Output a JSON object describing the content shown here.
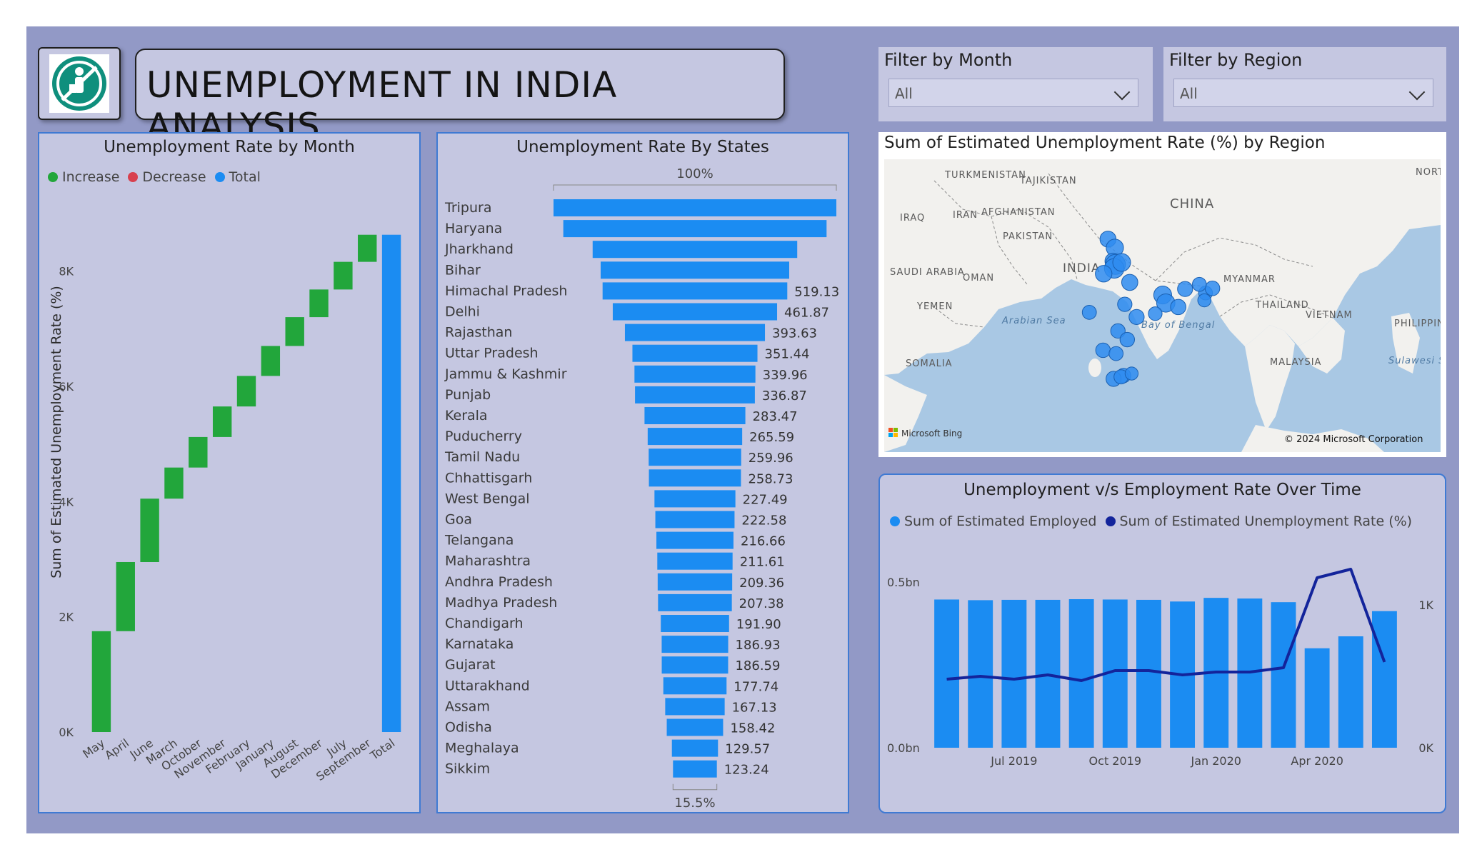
{
  "header": {
    "title": "UNEMPLOYMENT IN INDIA ANALYSIS"
  },
  "filters": [
    {
      "label": "Filter by Month",
      "value": "All"
    },
    {
      "label": "Filter by Region",
      "value": "All"
    }
  ],
  "colors": {
    "increase": "#22a63b",
    "decrease": "#d8404e",
    "total": "#1b8cf2",
    "line": "#13249b"
  },
  "waterfall": {
    "title": "Unemployment Rate by Month",
    "legend": [
      "Increase",
      "Decrease",
      "Total"
    ],
    "ylabel": "Sum of Estimated Unemployment Rate (%)",
    "yticks": [
      "0K",
      "2K",
      "4K",
      "6K",
      "8K"
    ]
  },
  "states": {
    "title": "Unemployment Rate By States",
    "top_label": "100%",
    "bottom_label": "15.5%"
  },
  "map": {
    "title": "Sum of Estimated Unemployment Rate (%) by Region",
    "labels": [
      "TURKMENISTAN",
      "TAJIKISTAN",
      "IRAQ",
      "IRAN",
      "AFGHANISTAN",
      "PAKISTAN",
      "CHINA",
      "SAUDI ARABIA",
      "OMAN",
      "INDIA",
      "MYANMAR",
      "YEMEN",
      "Arabian Sea",
      "Bay of Bengal",
      "THAILAND",
      "VIETNAM",
      "PHILIPPIN",
      "SOMALIA",
      "MALAYSIA",
      "Sulawesi Sea",
      "NORT"
    ],
    "credit_left": "Microsoft Bing",
    "credit_right": "© 2024 Microsoft Corporation"
  },
  "combo": {
    "title": "Unemployment v/s Employment Rate Over Time",
    "legend": [
      "Sum of Estimated Employed",
      "Sum of Estimated Unemployment Rate (%)"
    ],
    "left_ticks": [
      "0.0bn",
      "0.5bn"
    ],
    "right_ticks": [
      "0K",
      "1K"
    ],
    "x_ticks": [
      "Jul 2019",
      "Oct 2019",
      "Jan 2020",
      "Apr 2020"
    ]
  },
  "chart_data": [
    {
      "type": "bar",
      "subtype": "waterfall",
      "title": "Unemployment Rate by Month",
      "ylabel": "Sum of Estimated Unemployment Rate (%)",
      "ylim": [
        0,
        8800
      ],
      "categories": [
        "May",
        "April",
        "June",
        "March",
        "October",
        "November",
        "February",
        "January",
        "August",
        "December",
        "July",
        "September",
        "Total"
      ],
      "values": [
        1750,
        1200,
        1100,
        540,
        530,
        530,
        530,
        520,
        500,
        480,
        480,
        470,
        8630
      ]
    },
    {
      "type": "bar",
      "subtype": "funnel",
      "title": "Unemployment Rate By States",
      "categories": [
        "Tripura",
        "Haryana",
        "Jharkhand",
        "Bihar",
        "Himachal Pradesh",
        "Delhi",
        "Rajasthan",
        "Uttar Pradesh",
        "Jammu & Kashmir",
        "Punjab",
        "Kerala",
        "Puducherry",
        "Tamil Nadu",
        "Chhattisgarh",
        "West Bengal",
        "Goa",
        "Telangana",
        "Maharashtra",
        "Andhra Pradesh",
        "Madhya Pradesh",
        "Chandigarh",
        "Karnataka",
        "Gujarat",
        "Uttarakhand",
        "Assam",
        "Odisha",
        "Meghalaya",
        "Sikkim"
      ],
      "values": [
        795,
        740,
        575,
        530,
        519.13,
        461.87,
        393.63,
        351.44,
        339.96,
        336.87,
        283.47,
        265.59,
        259.96,
        258.73,
        227.49,
        222.58,
        216.66,
        211.61,
        209.36,
        207.38,
        191.9,
        186.93,
        186.59,
        177.74,
        167.13,
        158.42,
        129.57,
        123.24
      ],
      "labels": [
        "",
        "",
        "",
        "",
        "519.13",
        "461.87",
        "393.63",
        "351.44",
        "339.96",
        "336.87",
        "283.47",
        "265.59",
        "259.96",
        "258.73",
        "227.49",
        "222.58",
        "216.66",
        "211.61",
        "209.36",
        "207.38",
        "191.90",
        "186.93",
        "186.59",
        "177.74",
        "167.13",
        "158.42",
        "129.57",
        "123.24"
      ]
    },
    {
      "type": "scatter",
      "subtype": "bubble-map",
      "title": "Sum of Estimated Unemployment Rate (%) by Region",
      "x": [
        76.0,
        77.1,
        76.8,
        77.2,
        77.0,
        78.2,
        75.3,
        79.5,
        84.8,
        85.3,
        87.3,
        91.7,
        92.8,
        88.4,
        90.7,
        91.5,
        78.7,
        80.6,
        73.0,
        83.6,
        77.6,
        79.1,
        75.2,
        77.3,
        78.5,
        76.9,
        78.1,
        79.8
      ],
      "y": [
        32.0,
        30.7,
        28.7,
        28.2,
        27.6,
        28.5,
        26.8,
        25.5,
        23.6,
        22.4,
        21.8,
        23.9,
        24.6,
        24.5,
        25.2,
        22.8,
        22.2,
        20.3,
        21.0,
        20.8,
        18.2,
        16.9,
        15.3,
        14.8,
        11.5,
        11.0,
        11.3,
        11.8
      ],
      "values": [
        339.96,
        461.87,
        336.87,
        795,
        740,
        519.13,
        393.63,
        351.44,
        530,
        575,
        283.47,
        167.13,
        227.49,
        258.73,
        177.74,
        129.57,
        207.38,
        265.59,
        186.59,
        158.42,
        211.61,
        216.66,
        222.58,
        186.93,
        209.36,
        259.96,
        191.9,
        123.24
      ]
    },
    {
      "type": "bar",
      "subtype": "bar-line-combo",
      "title": "Unemployment v/s Employment Rate Over Time",
      "x": [
        "2019-05",
        "2019-06",
        "2019-07",
        "2019-08",
        "2019-09",
        "2019-10",
        "2019-11",
        "2019-12",
        "2020-01",
        "2020-02",
        "2020-03",
        "2020-04",
        "2020-05",
        "2020-06"
      ],
      "series": [
        {
          "name": "Sum of Estimated Employed",
          "axis": "left",
          "unit": "bn",
          "values": [
            0.447,
            0.445,
            0.446,
            0.446,
            0.448,
            0.447,
            0.446,
            0.441,
            0.452,
            0.45,
            0.439,
            0.3,
            0.336,
            0.412
          ]
        },
        {
          "name": "Sum of Estimated Unemployment Rate (%)",
          "axis": "right",
          "type": "line",
          "values": [
            480,
            500,
            480,
            510,
            470,
            540,
            540,
            510,
            530,
            530,
            560,
            1190,
            1250,
            600
          ]
        }
      ],
      "left_ylim": [
        0,
        0.5
      ],
      "right_ylim": [
        0,
        1000
      ]
    }
  ]
}
